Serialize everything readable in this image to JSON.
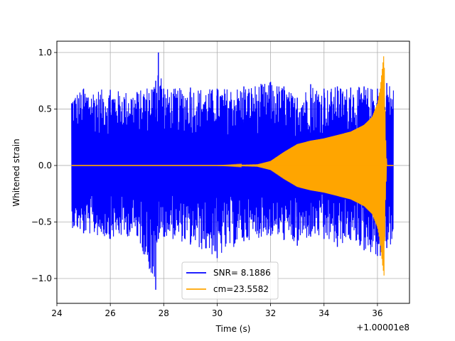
{
  "chart_data": {
    "type": "line",
    "title": "",
    "xlabel": "Time (s)",
    "ylabel": "Whitened strain",
    "x_offset_label": "+1.00001e8",
    "xlim": [
      24,
      37.2
    ],
    "ylim": [
      -1.22,
      1.1
    ],
    "x_ticks": [
      24,
      26,
      28,
      30,
      32,
      34,
      36
    ],
    "x_tick_labels": [
      "24",
      "26",
      "28",
      "30",
      "32",
      "34",
      "36"
    ],
    "y_ticks": [
      -1.0,
      -0.5,
      0.0,
      0.5,
      1.0
    ],
    "y_tick_labels": [
      "−1.0",
      "−0.5",
      "0.0",
      "0.5",
      "1.0"
    ],
    "grid": true,
    "legend_position": "lower center",
    "series": [
      {
        "name": "SNR= 8.1886",
        "color": "#0000ff",
        "x_range": [
          24.55,
          36.6
        ],
        "envelope": {
          "t": [
            24.55,
            25,
            26,
            27,
            27.7,
            27.8,
            28,
            29,
            30,
            31,
            32,
            32.5,
            33,
            33.5,
            34,
            34.5,
            35,
            35.5,
            36,
            36.2,
            36.25,
            36.35,
            36.6
          ],
          "upper": [
            0.63,
            0.68,
            0.67,
            0.65,
            0.75,
            1.0,
            0.68,
            0.69,
            0.68,
            0.7,
            0.74,
            0.7,
            0.6,
            0.72,
            0.68,
            0.7,
            0.69,
            0.7,
            0.68,
            0.75,
            0.6,
            0.73,
            0.71
          ],
          "lower": [
            -0.55,
            -0.6,
            -0.65,
            -0.62,
            -1.1,
            -0.65,
            -0.63,
            -0.7,
            -0.82,
            -0.67,
            -0.62,
            -0.66,
            -0.71,
            -0.63,
            -0.65,
            -0.72,
            -0.66,
            -0.75,
            -0.8,
            -0.85,
            -0.65,
            -0.73,
            -0.7
          ]
        }
      },
      {
        "name": "cm=23.5582",
        "color": "#ffa500",
        "x_range": [
          24.55,
          36.6
        ],
        "envelope": {
          "t": [
            24.55,
            30,
            31.5,
            32,
            32.5,
            33,
            33.5,
            34,
            34.5,
            35,
            35.5,
            35.8,
            36.0,
            36.1,
            36.2,
            36.25,
            36.3,
            36.35,
            36.6
          ],
          "upper": [
            0.0,
            0.0,
            0.01,
            0.04,
            0.12,
            0.19,
            0.22,
            0.24,
            0.27,
            0.3,
            0.36,
            0.43,
            0.55,
            0.68,
            0.9,
            1.0,
            0.3,
            0.0,
            0.0
          ],
          "lower": [
            0.0,
            0.0,
            -0.01,
            -0.04,
            -0.12,
            -0.19,
            -0.22,
            -0.24,
            -0.27,
            -0.3,
            -0.36,
            -0.43,
            -0.55,
            -0.68,
            -0.9,
            -0.98,
            -0.3,
            0.0,
            0.0
          ]
        }
      }
    ]
  }
}
